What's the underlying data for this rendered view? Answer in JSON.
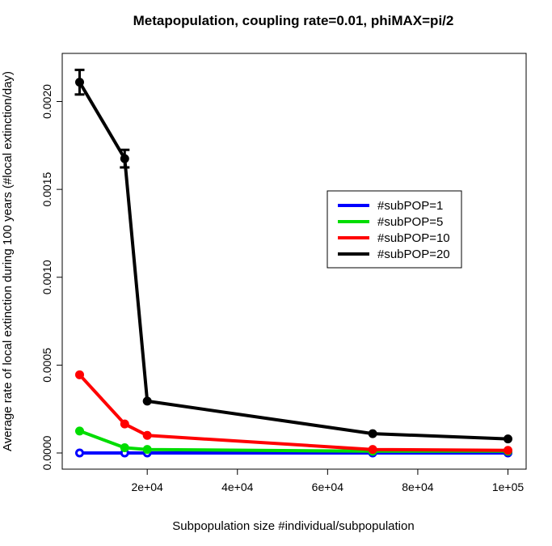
{
  "chart_data": {
    "type": "line",
    "title": "Metapopulation, coupling rate=0.01, phiMAX=pi/2",
    "xlabel": "Subpopulation size #individual/subpopulation",
    "ylabel": "Average rate of local extinction during 100 years (#local extinction/day)",
    "xlim": [
      5000,
      100000
    ],
    "ylim": [
      -5e-05,
      0.00225
    ],
    "xticks": [
      20000,
      40000,
      60000,
      80000,
      100000
    ],
    "xtick_labels": [
      "2e+04",
      "4e+04",
      "6e+04",
      "8e+04",
      "1e+05"
    ],
    "yticks": [
      0,
      0.0005,
      0.001,
      0.0015,
      0.002
    ],
    "ytick_labels": [
      "0.0000",
      "0.0005",
      "0.0010",
      "0.0015",
      "0.0020"
    ],
    "grid": false,
    "legend_position": "right",
    "x": [
      5000,
      15000,
      20000,
      70000,
      100000
    ],
    "series": [
      {
        "name": "#subPOP=1",
        "color": "#0000ff",
        "marker": "open-circle",
        "values": [
          0.0,
          0.0,
          0.0,
          0.0,
          0.0
        ]
      },
      {
        "name": "#subPOP=5",
        "color": "#00dd00",
        "marker": "filled-circle",
        "values": [
          0.000125,
          3e-05,
          2e-05,
          1e-05,
          1e-05
        ]
      },
      {
        "name": "#subPOP=10",
        "color": "#ff0000",
        "marker": "filled-circle",
        "values": [
          0.000445,
          0.000165,
          0.0001,
          2e-05,
          1.5e-05
        ]
      },
      {
        "name": "#subPOP=20",
        "color": "#000000",
        "marker": "filled-circle",
        "values": [
          0.00211,
          0.001675,
          0.000295,
          0.00011,
          8e-05
        ],
        "errors": [
          7e-05,
          5e-05,
          0,
          0,
          0
        ]
      }
    ]
  }
}
